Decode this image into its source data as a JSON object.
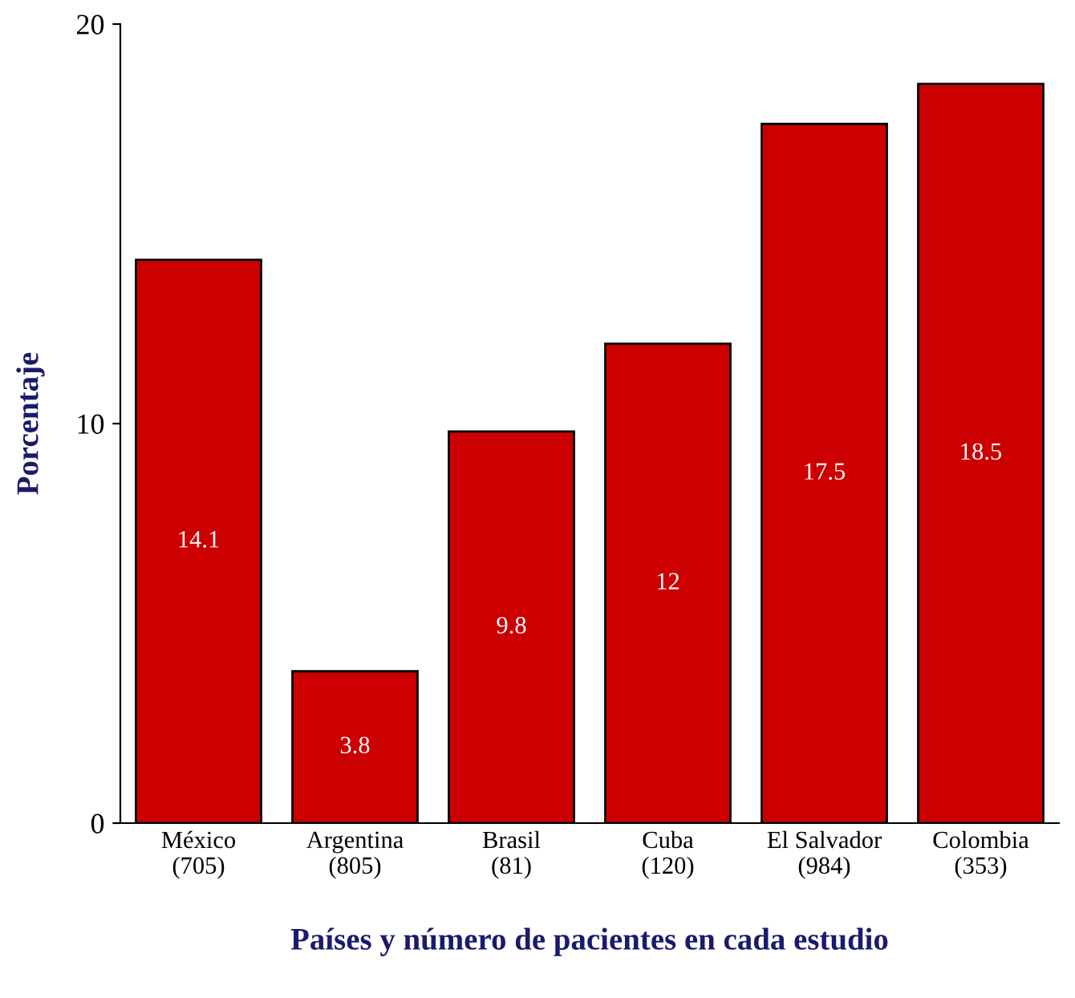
{
  "chart_data": {
    "type": "bar",
    "categories": [
      "México\n(705)",
      "Argentina\n(805)",
      "Brasil\n(81)",
      "Cuba\n(120)",
      "El Salvador\n(984)",
      "Colombia\n(353)"
    ],
    "values": [
      14.1,
      3.8,
      9.8,
      12,
      17.5,
      18.5
    ],
    "color": "#cc0000",
    "xlabel": "Países y número de pacientes en cada estudio",
    "ylabel": "Porcentaje",
    "ylim": [
      0,
      20
    ],
    "yticks": [
      0,
      10,
      20
    ],
    "grid": false,
    "data_labels": true
  }
}
